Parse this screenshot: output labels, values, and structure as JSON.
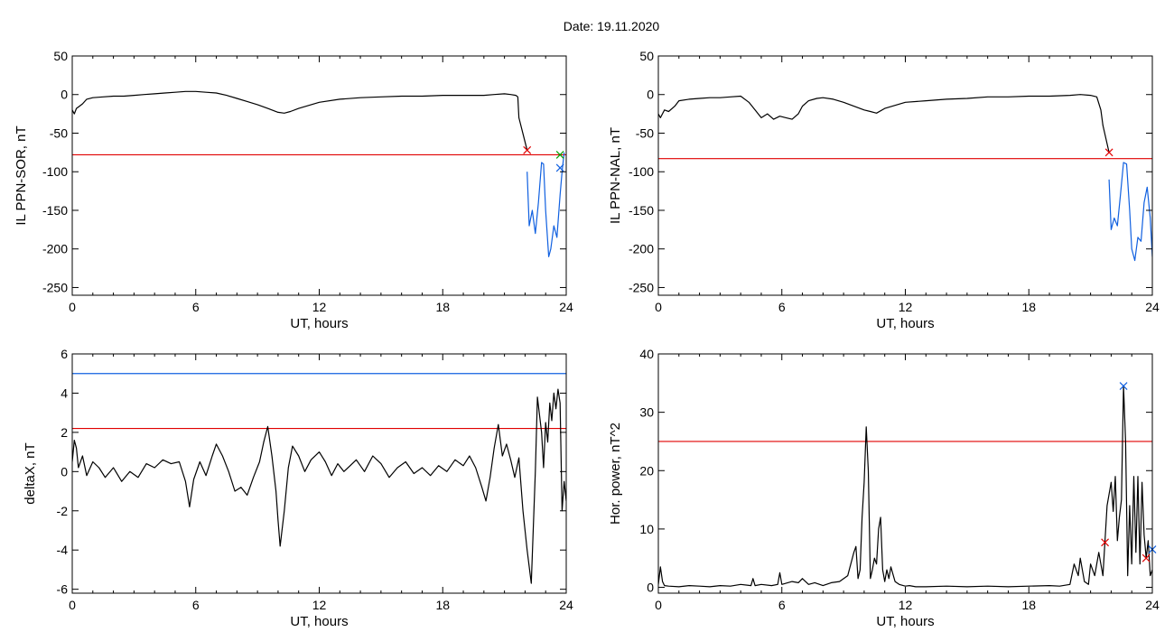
{
  "figure": {
    "title": "Date:  19.11.2020",
    "colors": {
      "trace": "#000000",
      "threshold": "#e00000",
      "highlight": "#1060e0",
      "green_marker": "#00a000",
      "axes": "#000000"
    }
  },
  "chart_data": [
    {
      "id": "p1",
      "type": "line",
      "xlabel": "UT, hours",
      "ylabel": "IL PPN-SOR, nT",
      "xlim": [
        0,
        24
      ],
      "ylim": [
        -260,
        50
      ],
      "xticks": [
        0,
        6,
        12,
        18,
        24
      ],
      "yticks": [
        50,
        0,
        -50,
        -100,
        -150,
        -200,
        -250
      ],
      "grid": false,
      "series": [
        {
          "color": "#000000",
          "x": [
            0.0,
            0.1,
            0.2,
            0.35,
            0.5,
            0.7,
            1.0,
            1.5,
            2.0,
            2.5,
            3.0,
            3.5,
            4.0,
            4.5,
            5.0,
            5.5,
            6.0,
            6.5,
            7.0,
            7.5,
            8.0,
            8.5,
            9.0,
            9.5,
            10.0,
            10.3,
            10.6,
            11.0,
            11.5,
            12.0,
            13.0,
            14.0,
            15.0,
            16.0,
            17.0,
            18.0,
            19.0,
            20.0,
            20.5,
            21.0,
            21.3,
            21.55,
            21.65,
            21.7,
            22.1
          ],
          "y": [
            -20,
            -25,
            -18,
            -15,
            -12,
            -6,
            -4,
            -3,
            -2,
            -2,
            -1,
            0,
            1,
            2,
            3,
            4,
            4,
            3,
            2,
            -1,
            -5,
            -9,
            -13,
            -18,
            -23,
            -24,
            -22,
            -18,
            -14,
            -10,
            -6,
            -4,
            -3,
            -2,
            -2,
            -1,
            -1,
            -1,
            0,
            1,
            0,
            -1,
            -3,
            -30,
            -72
          ]
        },
        {
          "color": "#1060e0",
          "x": [
            22.1,
            22.2,
            22.35,
            22.5,
            22.65,
            22.8,
            22.9,
            23.0,
            23.15,
            23.25,
            23.4,
            23.55,
            23.7,
            23.8,
            23.9
          ],
          "y": [
            -100,
            -170,
            -150,
            -180,
            -140,
            -88,
            -90,
            -150,
            -210,
            -200,
            -170,
            -185,
            -130,
            -100,
            -75
          ]
        }
      ],
      "thresholds": [
        {
          "y": -78,
          "color": "#e00000"
        }
      ],
      "markers": [
        {
          "x": 22.1,
          "y": -72,
          "color": "#e00000"
        },
        {
          "x": 23.7,
          "y": -78,
          "color": "#00a000"
        },
        {
          "x": 23.7,
          "y": -95,
          "color": "#1060e0"
        }
      ]
    },
    {
      "id": "p2",
      "type": "line",
      "xlabel": "UT, hours",
      "ylabel": "IL PPN-NAL, nT",
      "xlim": [
        0,
        24
      ],
      "ylim": [
        -260,
        50
      ],
      "xticks": [
        0,
        6,
        12,
        18,
        24
      ],
      "yticks": [
        50,
        0,
        -50,
        -100,
        -150,
        -200,
        -250
      ],
      "grid": false,
      "series": [
        {
          "color": "#000000",
          "x": [
            0.0,
            0.1,
            0.3,
            0.5,
            0.8,
            1.0,
            1.5,
            2.0,
            2.5,
            3.0,
            3.5,
            4.0,
            4.4,
            4.7,
            5.0,
            5.3,
            5.6,
            5.9,
            6.2,
            6.5,
            6.8,
            7.0,
            7.3,
            7.7,
            8.0,
            8.5,
            9.0,
            9.5,
            10.0,
            10.3,
            10.6,
            11.0,
            11.5,
            12.0,
            13.0,
            14.0,
            15.0,
            16.0,
            17.0,
            18.0,
            19.0,
            20.0,
            20.5,
            21.0,
            21.3,
            21.5,
            21.6,
            21.9
          ],
          "y": [
            -25,
            -30,
            -20,
            -22,
            -15,
            -8,
            -6,
            -5,
            -4,
            -4,
            -3,
            -2,
            -10,
            -20,
            -30,
            -25,
            -32,
            -28,
            -30,
            -32,
            -25,
            -15,
            -8,
            -5,
            -4,
            -6,
            -10,
            -15,
            -20,
            -22,
            -24,
            -18,
            -14,
            -10,
            -8,
            -6,
            -5,
            -3,
            -3,
            -2,
            -2,
            -1,
            0,
            -1,
            -3,
            -20,
            -40,
            -75
          ]
        },
        {
          "color": "#1060e0",
          "x": [
            21.9,
            22.0,
            22.15,
            22.3,
            22.45,
            22.6,
            22.75,
            22.9,
            23.0,
            23.15,
            23.3,
            23.45,
            23.6,
            23.75,
            23.9,
            24.0
          ],
          "y": [
            -110,
            -175,
            -160,
            -170,
            -130,
            -88,
            -90,
            -150,
            -200,
            -215,
            -185,
            -190,
            -140,
            -120,
            -160,
            -210
          ]
        }
      ],
      "thresholds": [
        {
          "y": -83,
          "color": "#e00000"
        }
      ],
      "markers": [
        {
          "x": 21.9,
          "y": -75,
          "color": "#e00000"
        }
      ]
    },
    {
      "id": "p3",
      "type": "line",
      "xlabel": "UT, hours",
      "ylabel": "deltaX, nT",
      "xlim": [
        0,
        24
      ],
      "ylim": [
        -6.2,
        6
      ],
      "xticks": [
        0,
        6,
        12,
        18,
        24
      ],
      "yticks": [
        6,
        4,
        2,
        0,
        -2,
        -4,
        -6
      ],
      "grid": false,
      "series": [
        {
          "color": "#000000",
          "x": [
            0.0,
            0.1,
            0.2,
            0.3,
            0.5,
            0.7,
            1.0,
            1.3,
            1.6,
            2.0,
            2.4,
            2.8,
            3.2,
            3.6,
            4.0,
            4.4,
            4.8,
            5.2,
            5.5,
            5.7,
            5.9,
            6.2,
            6.5,
            6.8,
            7.0,
            7.3,
            7.6,
            7.9,
            8.2,
            8.5,
            8.8,
            9.1,
            9.3,
            9.5,
            9.7,
            9.9,
            10.0,
            10.1,
            10.3,
            10.5,
            10.7,
            11.0,
            11.3,
            11.6,
            12.0,
            12.3,
            12.6,
            12.9,
            13.2,
            13.5,
            13.8,
            14.2,
            14.6,
            15.0,
            15.4,
            15.8,
            16.2,
            16.6,
            17.0,
            17.4,
            17.8,
            18.2,
            18.6,
            19.0,
            19.3,
            19.6,
            19.9,
            20.1,
            20.3,
            20.5,
            20.7,
            20.9,
            21.1,
            21.3,
            21.5,
            21.7,
            21.9,
            22.1,
            22.3,
            22.5,
            22.6,
            22.8,
            22.9,
            23.0,
            23.1,
            23.2,
            23.3,
            23.4,
            23.5,
            23.6,
            23.7,
            23.8,
            23.9,
            24.0
          ],
          "y": [
            0.5,
            1.6,
            1.2,
            0.2,
            0.8,
            -0.2,
            0.5,
            0.2,
            -0.3,
            0.2,
            -0.5,
            0.0,
            -0.3,
            0.4,
            0.2,
            0.6,
            0.4,
            0.5,
            -0.5,
            -1.8,
            -0.4,
            0.5,
            -0.2,
            0.8,
            1.4,
            0.8,
            0.0,
            -1.0,
            -0.8,
            -1.2,
            -0.3,
            0.5,
            1.5,
            2.3,
            0.8,
            -1.0,
            -2.5,
            -3.8,
            -2.0,
            0.2,
            1.3,
            0.8,
            0.0,
            0.6,
            1.0,
            0.5,
            -0.2,
            0.4,
            0.0,
            0.3,
            0.6,
            0.0,
            0.8,
            0.4,
            -0.3,
            0.2,
            0.5,
            -0.1,
            0.2,
            -0.2,
            0.3,
            0.0,
            0.6,
            0.3,
            0.8,
            0.2,
            -0.8,
            -1.5,
            -0.3,
            1.2,
            2.4,
            0.8,
            1.4,
            0.6,
            -0.3,
            0.7,
            -2.0,
            -4.0,
            -5.7,
            0.0,
            3.8,
            2.0,
            0.2,
            2.5,
            1.5,
            3.5,
            2.6,
            4.0,
            3.2,
            4.2,
            3.5,
            -2.0,
            -0.5,
            -1.5
          ]
        }
      ],
      "thresholds": [
        {
          "y": 5.0,
          "color": "#1060e0"
        },
        {
          "y": 2.2,
          "color": "#e00000"
        }
      ],
      "markers": []
    },
    {
      "id": "p4",
      "type": "line",
      "xlabel": "UT, hours",
      "ylabel": "Hor. power, nT^2",
      "xlim": [
        0,
        24
      ],
      "ylim": [
        -1,
        40
      ],
      "xticks": [
        0,
        6,
        12,
        18,
        24
      ],
      "yticks": [
        40,
        30,
        20,
        10,
        0
      ],
      "grid": false,
      "series": [
        {
          "color": "#000000",
          "x": [
            0.0,
            0.1,
            0.2,
            0.3,
            0.5,
            1.0,
            1.5,
            2.0,
            2.5,
            3.0,
            3.5,
            4.0,
            4.5,
            4.6,
            4.7,
            5.0,
            5.5,
            5.8,
            5.9,
            6.0,
            6.5,
            6.8,
            7.0,
            7.3,
            7.6,
            8.0,
            8.4,
            8.8,
            9.2,
            9.5,
            9.6,
            9.7,
            9.8,
            9.9,
            10.0,
            10.1,
            10.2,
            10.3,
            10.4,
            10.5,
            10.6,
            10.7,
            10.8,
            10.9,
            11.0,
            11.1,
            11.2,
            11.3,
            11.5,
            11.7,
            11.9,
            12.0,
            12.2,
            12.5,
            13.0,
            14.0,
            15.0,
            16.0,
            17.0,
            18.0,
            19.0,
            19.5,
            20.0,
            20.2,
            20.4,
            20.5,
            20.7,
            20.9,
            21.0,
            21.2,
            21.4,
            21.6,
            21.8,
            22.0,
            22.1,
            22.2,
            22.3,
            22.4,
            22.5,
            22.6,
            22.7,
            22.8,
            22.9,
            23.0,
            23.1,
            23.2,
            23.3,
            23.4,
            23.5,
            23.6,
            23.7,
            23.8,
            23.9,
            24.0
          ],
          "y": [
            0.5,
            3.5,
            1.0,
            0.3,
            0.2,
            0.1,
            0.3,
            0.2,
            0.1,
            0.3,
            0.2,
            0.5,
            0.3,
            1.5,
            0.3,
            0.5,
            0.3,
            0.5,
            2.5,
            0.5,
            1.0,
            0.8,
            1.5,
            0.5,
            0.8,
            0.3,
            0.8,
            1.0,
            2.0,
            6.0,
            7.0,
            1.5,
            3.0,
            12.0,
            18.0,
            27.5,
            20.0,
            1.5,
            3.0,
            5.0,
            4.0,
            10.0,
            12.0,
            3.0,
            1.0,
            3.0,
            1.5,
            3.5,
            1.0,
            0.5,
            0.3,
            0.2,
            0.3,
            0.1,
            0.1,
            0.2,
            0.1,
            0.2,
            0.1,
            0.2,
            0.3,
            0.2,
            0.5,
            4.0,
            2.0,
            5.0,
            1.0,
            0.5,
            4.0,
            2.0,
            6.0,
            2.0,
            14.0,
            18.0,
            13.0,
            19.0,
            8.0,
            12.0,
            15.0,
            34.5,
            25.0,
            2.0,
            14.0,
            4.0,
            19.0,
            6.0,
            19.0,
            4.0,
            18.0,
            9.0,
            5.0,
            8.0,
            2.0,
            3.0
          ]
        }
      ],
      "thresholds": [
        {
          "y": 25.0,
          "color": "#e00000"
        }
      ],
      "markers": [
        {
          "x": 22.6,
          "y": 34.5,
          "color": "#1060e0"
        },
        {
          "x": 21.7,
          "y": 7.7,
          "color": "#e00000"
        },
        {
          "x": 23.7,
          "y": 5.0,
          "color": "#e00000"
        },
        {
          "x": 24.0,
          "y": 6.5,
          "color": "#1060e0"
        }
      ]
    }
  ]
}
